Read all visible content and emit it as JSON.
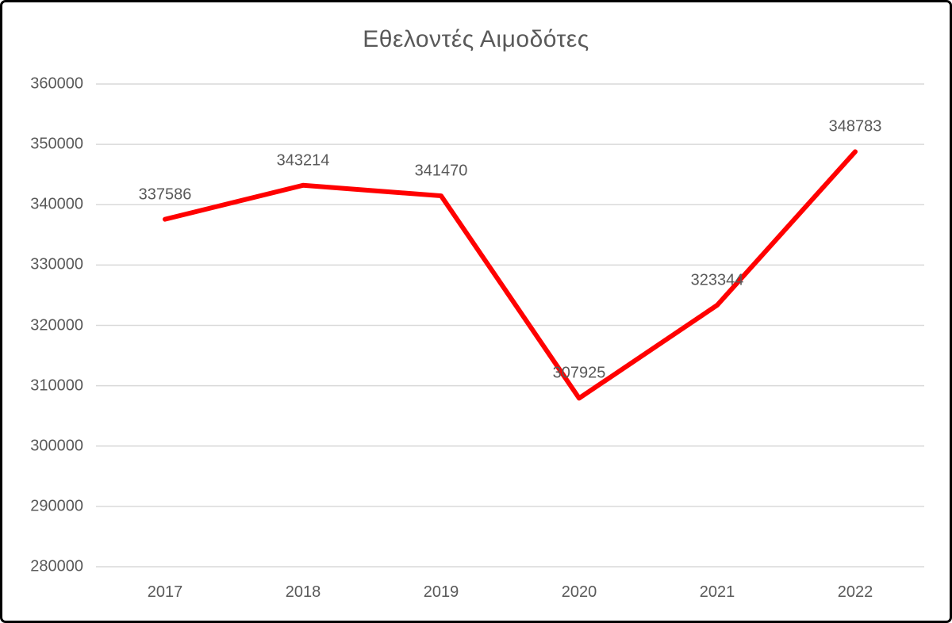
{
  "chart_data": {
    "type": "line",
    "title": "Εθελοντές Αιμοδότες",
    "categories": [
      "2017",
      "2018",
      "2019",
      "2020",
      "2021",
      "2022"
    ],
    "series": [
      {
        "name": "Εθελοντές Αιμοδότες",
        "values": [
          337586,
          343214,
          341470,
          307925,
          323344,
          348783
        ]
      }
    ],
    "data_labels": [
      "337586",
      "343214",
      "341470",
      "307925",
      "323344",
      "348783"
    ],
    "xlabel": "",
    "ylabel": "",
    "ylim": [
      280000,
      360000
    ],
    "yticks": [
      280000,
      290000,
      300000,
      310000,
      320000,
      330000,
      340000,
      350000,
      360000
    ],
    "grid": "horizontal-only",
    "legend_position": "none",
    "colors": {
      "line": "#ff0000",
      "gridline": "#d9d9d9",
      "text": "#595959",
      "background": "#ffffff",
      "border": "#000000"
    }
  }
}
